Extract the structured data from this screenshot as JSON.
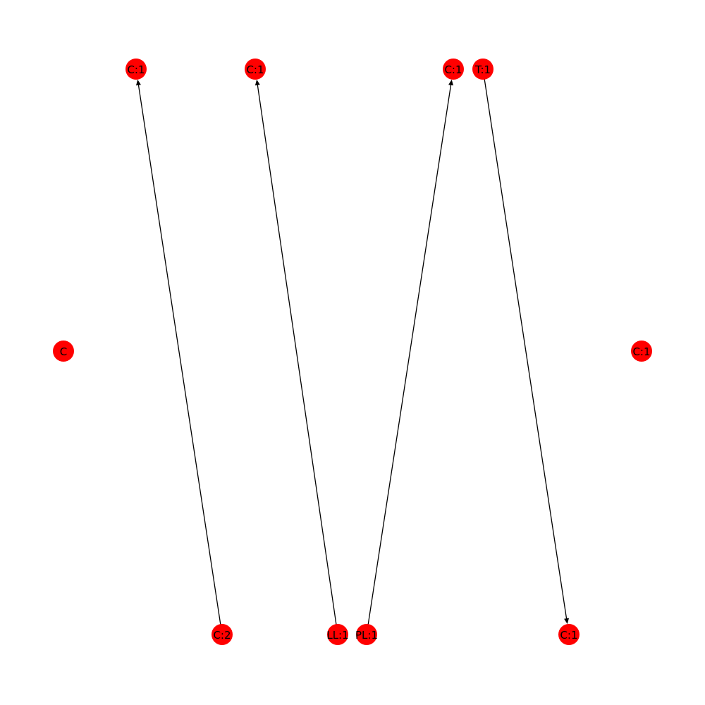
{
  "graph": {
    "node_color": "#ff0000",
    "edge_color": "#000000",
    "label_color": "#000000",
    "nodes": [
      {
        "id": "n1",
        "label": "C:1"
      },
      {
        "id": "n2",
        "label": "C:1"
      },
      {
        "id": "n3",
        "label": "C:1"
      },
      {
        "id": "n4",
        "label": "T:1"
      },
      {
        "id": "n5",
        "label": "C"
      },
      {
        "id": "n6",
        "label": "C:1"
      },
      {
        "id": "n7",
        "label": "C:2"
      },
      {
        "id": "n8",
        "label": "LL:1"
      },
      {
        "id": "n9",
        "label": "PL:1"
      },
      {
        "id": "n10",
        "label": "C:1"
      }
    ],
    "edges": [
      {
        "source": "n7",
        "target": "n1",
        "directed": true
      },
      {
        "source": "n8",
        "target": "n2",
        "directed": true
      },
      {
        "source": "n9",
        "target": "n3",
        "directed": true
      },
      {
        "source": "n4",
        "target": "n10",
        "directed": true
      }
    ]
  }
}
